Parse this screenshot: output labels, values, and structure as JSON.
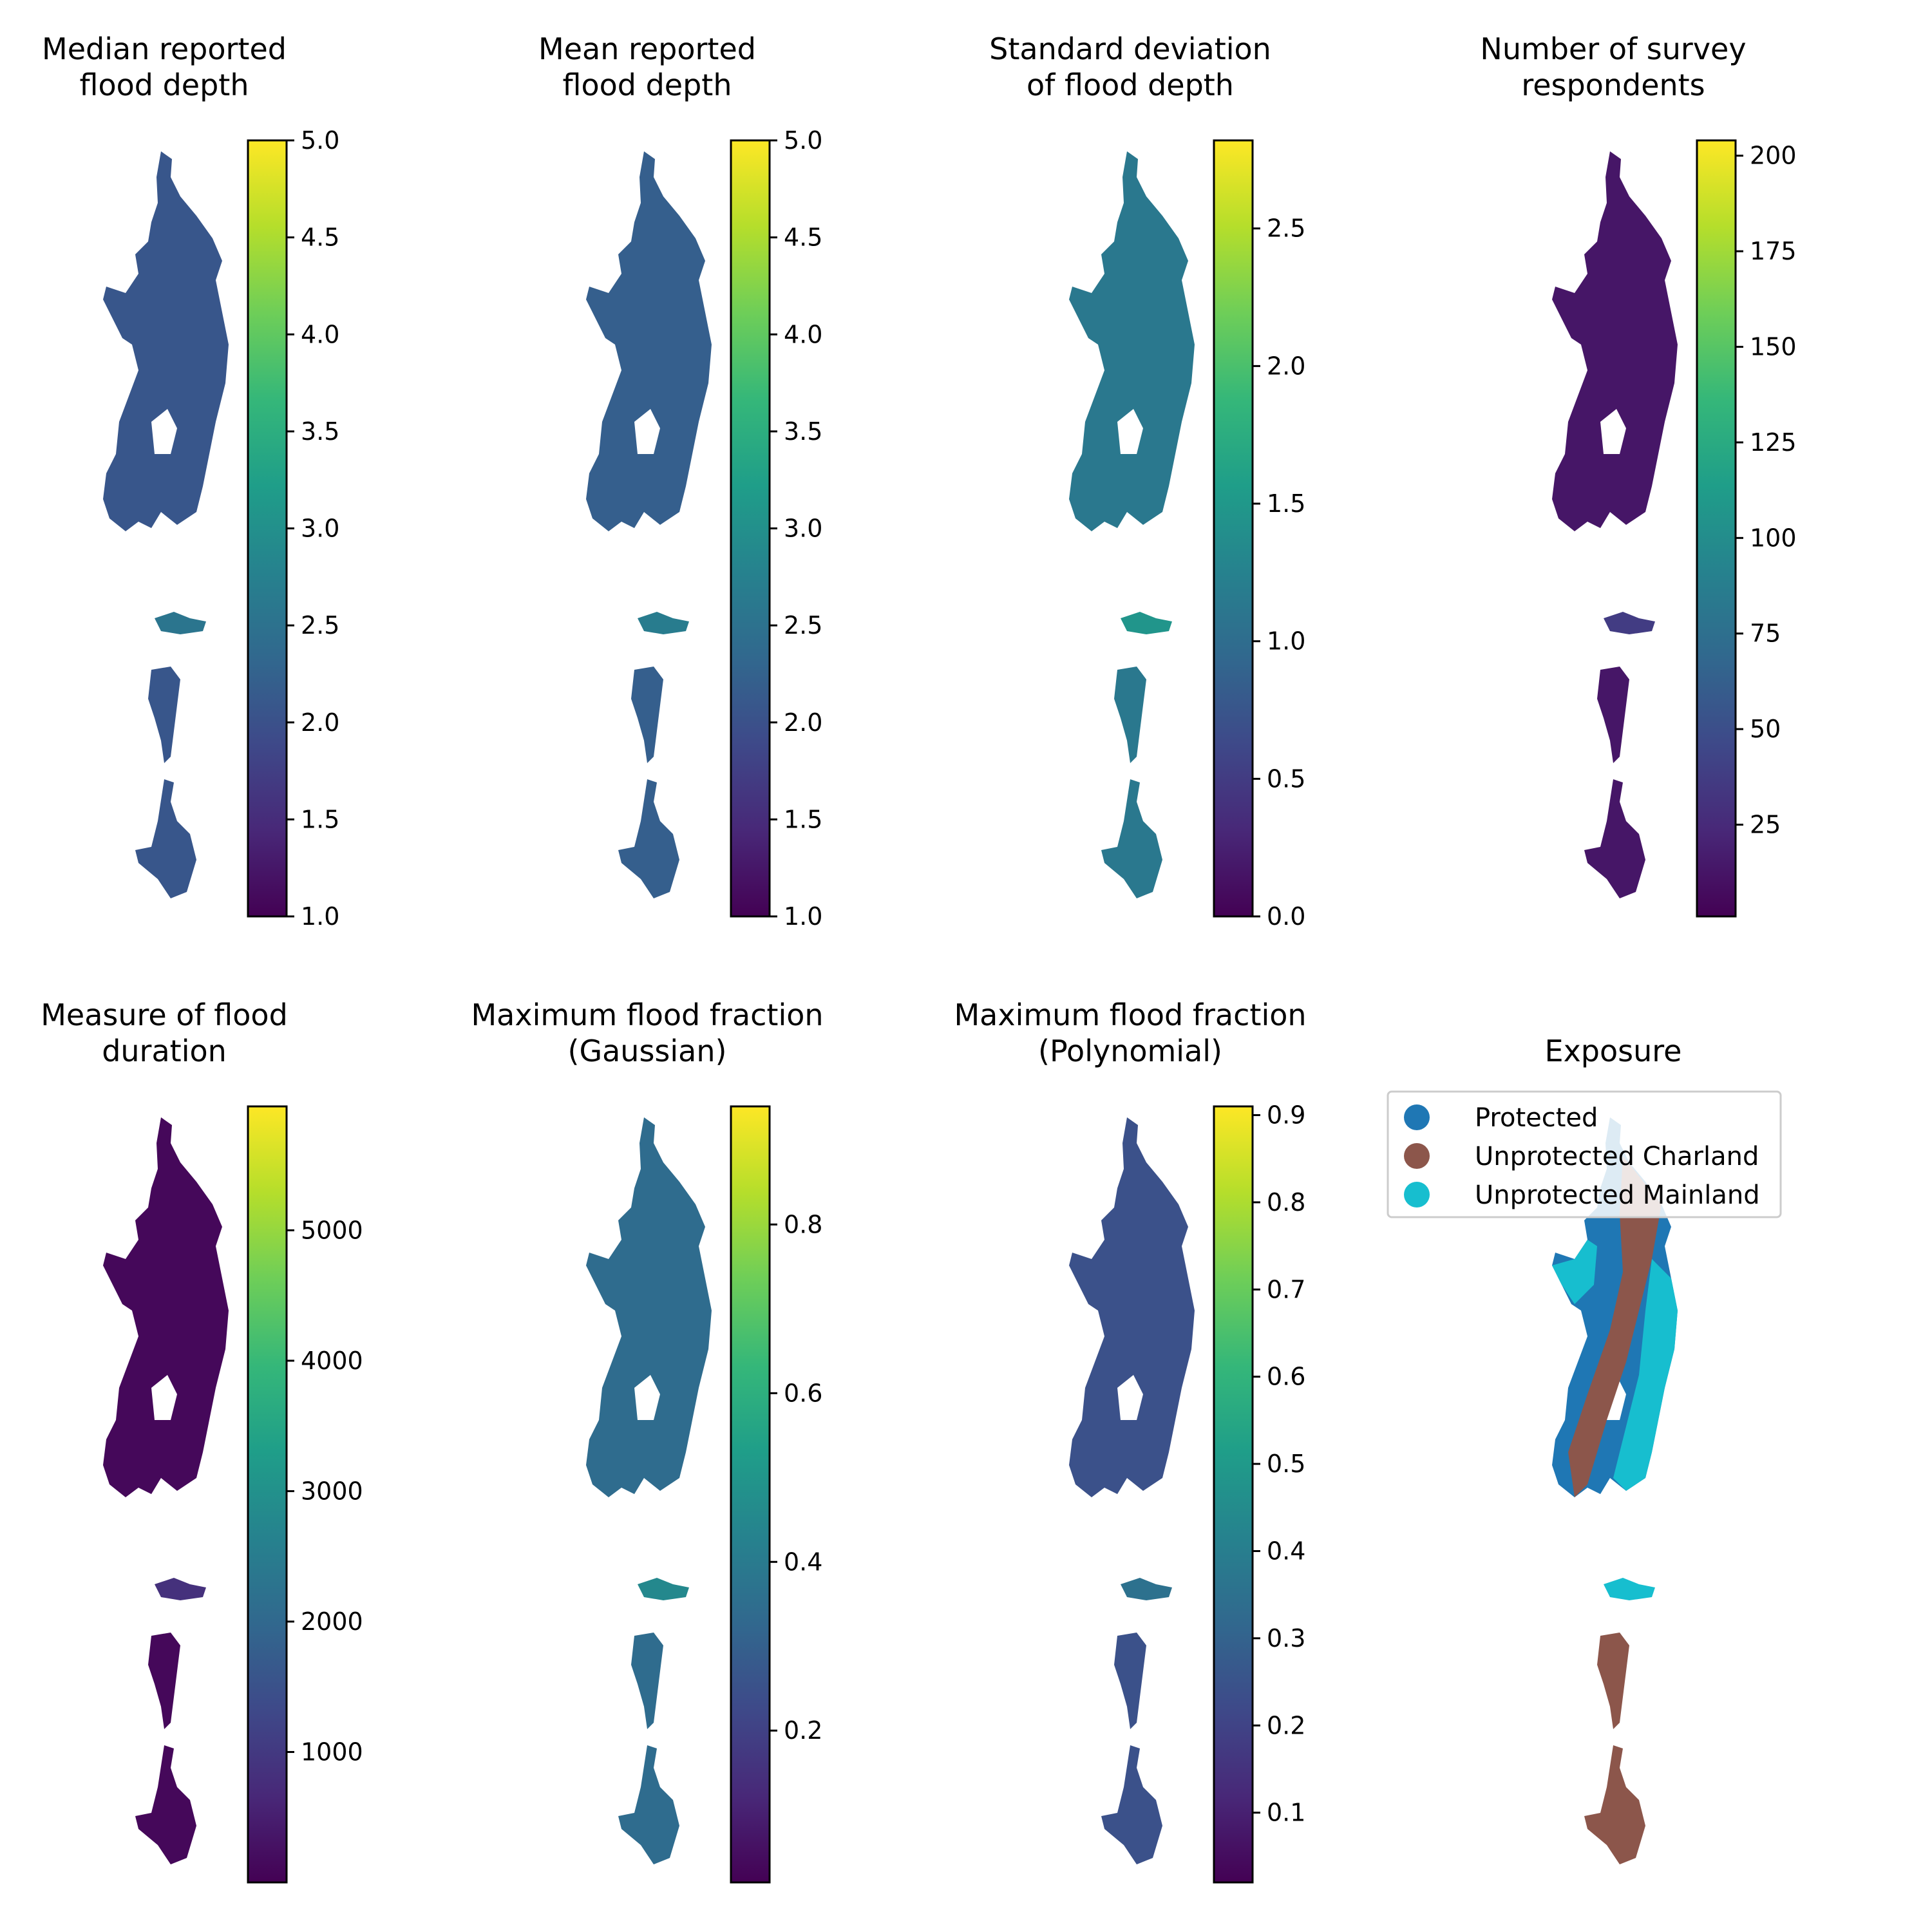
{
  "figure": {
    "panels": [
      {
        "id": "median-depth",
        "title": [
          "Median reported",
          "flood depth"
        ],
        "colorbar": {
          "min": 1.0,
          "max": 5.0,
          "ticks": [
            "1.0",
            "1.5",
            "2.0",
            "2.5",
            "3.0",
            "3.5",
            "4.0",
            "4.5",
            "5.0"
          ],
          "tick_values": [
            1.0,
            1.5,
            2.0,
            2.5,
            3.0,
            3.5,
            4.0,
            4.5,
            5.0
          ]
        },
        "dominant": 0.27
      },
      {
        "id": "mean-depth",
        "title": [
          "Mean reported",
          "flood depth"
        ],
        "colorbar": {
          "min": 1.0,
          "max": 5.0,
          "ticks": [
            "1.0",
            "1.5",
            "2.0",
            "2.5",
            "3.0",
            "3.5",
            "4.0",
            "4.5",
            "5.0"
          ],
          "tick_values": [
            1.0,
            1.5,
            2.0,
            2.5,
            3.0,
            3.5,
            4.0,
            4.5,
            5.0
          ]
        },
        "dominant": 0.3
      },
      {
        "id": "sd-depth",
        "title": [
          "Standard deviation",
          "of flood depth"
        ],
        "colorbar": {
          "min": 0.0,
          "max": 2.82,
          "ticks": [
            "0.0",
            "0.5",
            "1.0",
            "1.5",
            "2.0",
            "2.5"
          ],
          "tick_values": [
            0.0,
            0.5,
            1.0,
            1.5,
            2.0,
            2.5
          ]
        },
        "dominant": 0.4
      },
      {
        "id": "respondents",
        "title": [
          "Number of survey",
          "respondents"
        ],
        "colorbar": {
          "min": 1,
          "max": 204,
          "ticks": [
            "25",
            "50",
            "75",
            "100",
            "125",
            "150",
            "175",
            "200"
          ],
          "tick_values": [
            25,
            50,
            75,
            100,
            125,
            150,
            175,
            200
          ]
        },
        "dominant": 0.06
      },
      {
        "id": "duration",
        "title": [
          "Measure of flood",
          "duration"
        ],
        "colorbar": {
          "min": 0,
          "max": 5950,
          "ticks": [
            "1000",
            "2000",
            "3000",
            "4000",
            "5000"
          ],
          "tick_values": [
            1000,
            2000,
            3000,
            4000,
            5000
          ]
        },
        "dominant": 0.02
      },
      {
        "id": "max-fraction-gaussian",
        "title": [
          "Maximum flood fraction",
          "(Gaussian)"
        ],
        "colorbar": {
          "min": 0.02,
          "max": 0.94,
          "ticks": [
            "0.2",
            "0.4",
            "0.6",
            "0.8"
          ],
          "tick_values": [
            0.2,
            0.4,
            0.6,
            0.8
          ]
        },
        "dominant": 0.35
      },
      {
        "id": "max-fraction-polynomial",
        "title": [
          "Maximum flood fraction",
          "(Polynomial)"
        ],
        "colorbar": {
          "min": 0.02,
          "max": 0.91,
          "ticks": [
            "0.1",
            "0.2",
            "0.3",
            "0.4",
            "0.5",
            "0.6",
            "0.7",
            "0.8",
            "0.9"
          ],
          "tick_values": [
            0.1,
            0.2,
            0.3,
            0.4,
            0.5,
            0.6,
            0.7,
            0.8,
            0.9
          ]
        },
        "dominant": 0.25
      },
      {
        "id": "exposure",
        "title": [
          "Exposure"
        ],
        "categorical": true,
        "legend": [
          {
            "label": "Protected",
            "color": "#1f77b4"
          },
          {
            "label": "Unprotected Charland",
            "color": "#8c564b"
          },
          {
            "label": "Unprotected Mainland",
            "color": "#17becf"
          }
        ]
      }
    ],
    "colormap": "viridis",
    "viridis_stops": [
      "#440154",
      "#482878",
      "#3e4989",
      "#31688e",
      "#26828e",
      "#1f9e89",
      "#35b779",
      "#6ece58",
      "#b5de2b",
      "#fde725"
    ]
  }
}
